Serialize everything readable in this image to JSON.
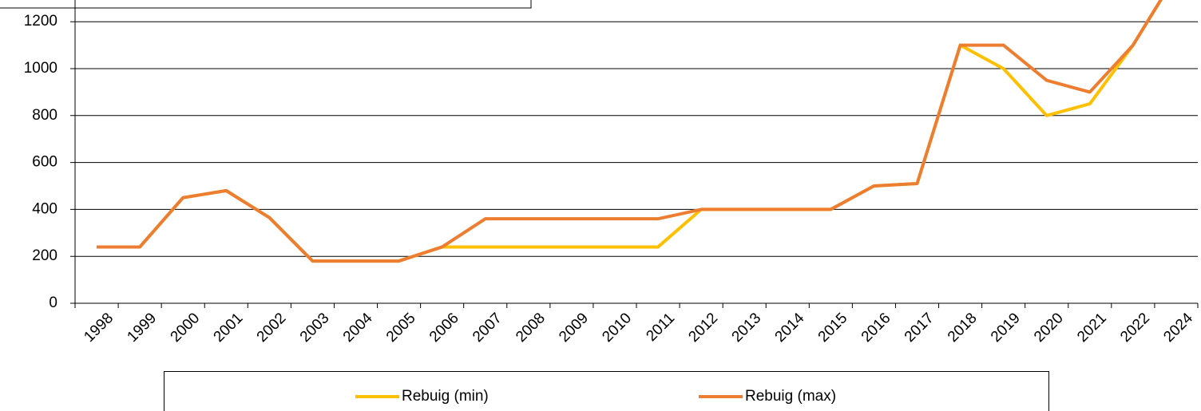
{
  "chart_data": {
    "type": "line",
    "categories": [
      "1998",
      "1999",
      "2000",
      "2001",
      "2002",
      "2003",
      "2004",
      "2005",
      "2006",
      "2007",
      "2008",
      "2009",
      "2010",
      "2011",
      "2012",
      "2013",
      "2014",
      "2015",
      "2016",
      "2017",
      "2018",
      "2019",
      "2020",
      "2021",
      "2022",
      "2024"
    ],
    "series": [
      {
        "name": "Rebuig (min)",
        "color": "#ffc000",
        "values": [
          240,
          240,
          450,
          480,
          365,
          180,
          180,
          180,
          240,
          240,
          240,
          240,
          240,
          240,
          400,
          400,
          400,
          400,
          500,
          510,
          1100,
          1000,
          800,
          850,
          1100,
          1400
        ]
      },
      {
        "name": "Rebuig (max)",
        "color": "#ed7d31",
        "values": [
          240,
          240,
          450,
          480,
          365,
          180,
          180,
          180,
          240,
          360,
          360,
          360,
          360,
          360,
          400,
          400,
          400,
          400,
          500,
          510,
          1100,
          1100,
          950,
          900,
          1100,
          1400
        ]
      }
    ],
    "ylim": [
      0,
      1400
    ],
    "yticks": [
      0,
      200,
      400,
      600,
      800,
      1000,
      1200
    ],
    "grid": true,
    "legend": "bottom"
  }
}
